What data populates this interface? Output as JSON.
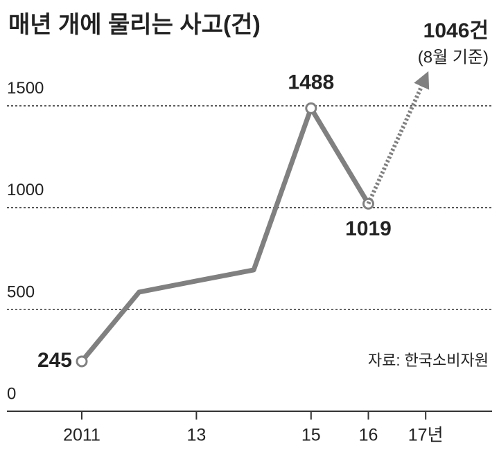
{
  "chart_data": {
    "type": "line",
    "title": "매년 개에 물리는 사고(건)",
    "categories": [
      "2011",
      null,
      "13",
      null,
      "15",
      "16",
      "17년"
    ],
    "series": [
      {
        "color": "#808080",
        "values": [
          245,
          585,
          640,
          694,
          1488,
          1019,
          null
        ],
        "value_labels": [
          "245",
          null,
          null,
          null,
          "1488",
          "1019",
          null
        ]
      },
      {
        "color": "#808080",
        "style": "dotted",
        "values": [
          null,
          null,
          null,
          null,
          null,
          1019,
          1640
        ]
      }
    ],
    "annotations": [
      "1046건",
      "(8월 기준)"
    ],
    "source": "자료: 한국소비자원",
    "ylim": [
      0,
      1700
    ],
    "yticks": [
      0,
      500,
      1000,
      1500
    ],
    "grid": true
  }
}
